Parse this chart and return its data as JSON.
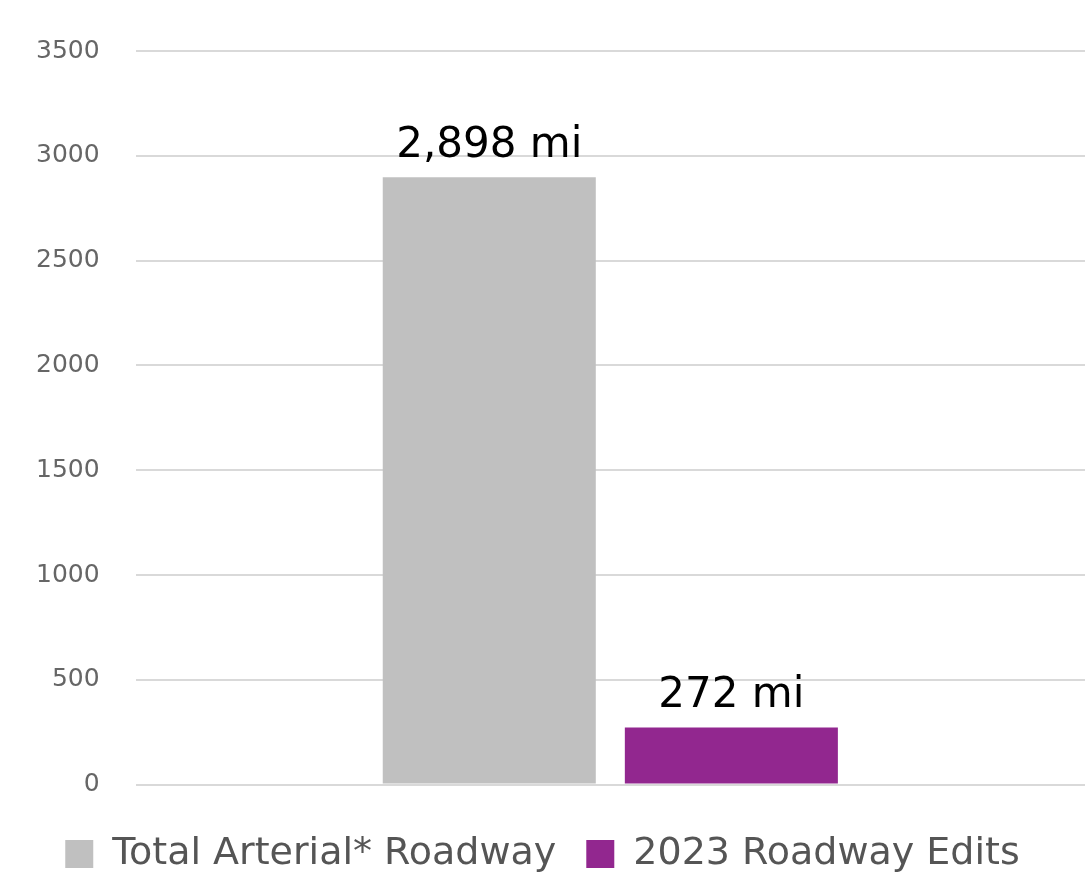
{
  "chart_data": {
    "type": "bar",
    "categories": [
      null
    ],
    "series": [
      {
        "name": "Total Arterial* Roadway",
        "color": "#c0c0c0",
        "values": [
          2898
        ],
        "value_labels": [
          "2,898 mi"
        ]
      },
      {
        "name": "2023 Roadway Edits",
        "color": "#92278f",
        "values": [
          272
        ],
        "value_labels": [
          "272 mi"
        ]
      }
    ],
    "ylim": [
      0,
      3500
    ],
    "yticks": [
      0,
      500,
      1000,
      1500,
      2000,
      2500,
      3000,
      3500
    ],
    "grid": "y",
    "legend": "bottom"
  }
}
